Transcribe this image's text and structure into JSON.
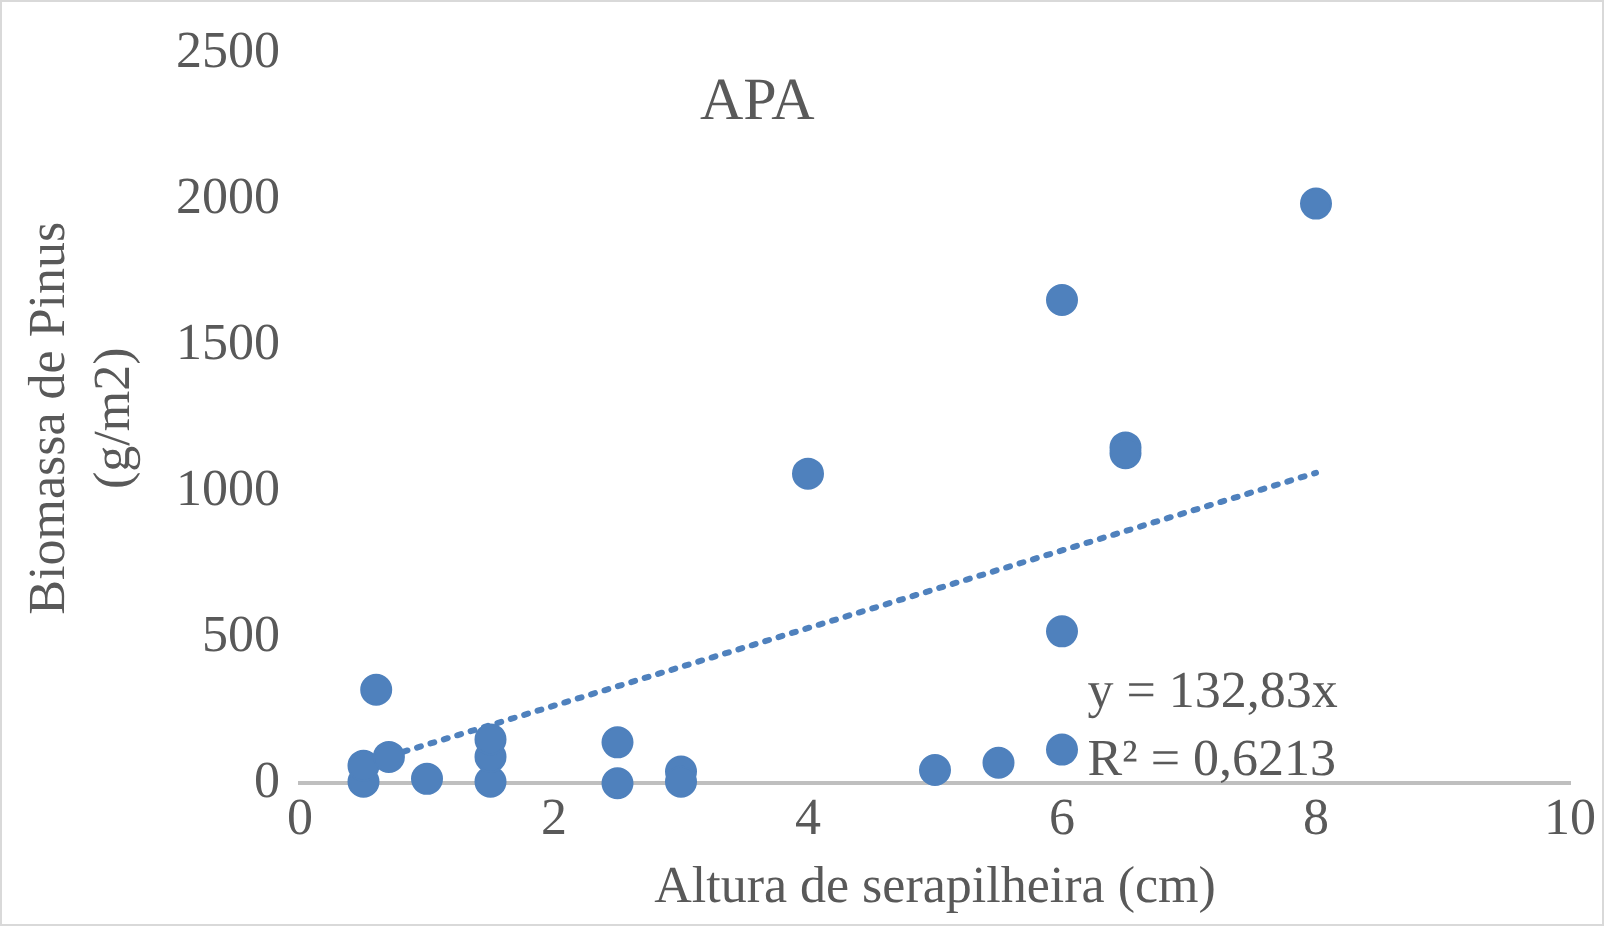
{
  "chart_data": {
    "type": "scatter",
    "title": "APA",
    "xlabel": "Altura de serapilheira (cm)",
    "ylabel": "Biomassa de Pinus (g/m2)",
    "xlim": [
      0,
      10
    ],
    "xticks": [
      0,
      2,
      4,
      6,
      8,
      10
    ],
    "ylim": [
      0,
      2500
    ],
    "yticks": [
      0,
      500,
      1000,
      1500,
      2000,
      2500
    ],
    "grid": false,
    "legend": false,
    "marker": "circle",
    "series": [
      {
        "color": "#4f81bd",
        "x": [
          0.5,
          0.5,
          0.6,
          0.7,
          1,
          1.5,
          1.5,
          1.5,
          2.5,
          2.5,
          3,
          3,
          4,
          5,
          5.5,
          6,
          6,
          6,
          6.5,
          6.5,
          8
        ],
        "values": [
          5,
          60,
          320,
          90,
          15,
          5,
          90,
          150,
          140,
          0,
          40,
          5,
          1060,
          45,
          70,
          115,
          520,
          1655,
          1150,
          1130,
          1985
        ]
      },
      {
        "type": "line",
        "color": "#4f81bd",
        "line_style": "dotted",
        "marker": "none",
        "x": [
          0.5,
          8
        ],
        "values": [
          66,
          1063
        ]
      }
    ],
    "annotations": [
      "y = 132,83x",
      "R² = 0,6213"
    ]
  }
}
